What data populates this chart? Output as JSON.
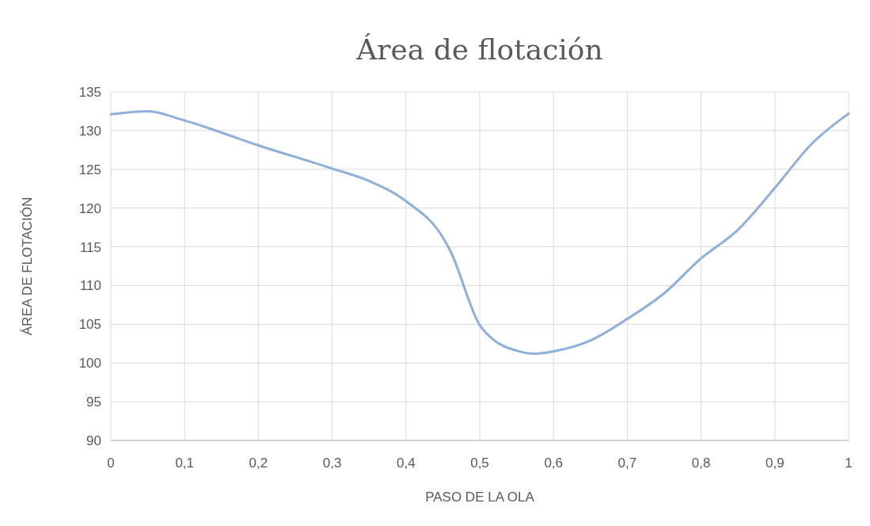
{
  "chart_data": {
    "type": "line",
    "title": "Área de flotación",
    "xlabel": "PASO DE LA OLA",
    "ylabel": "ÁREA DE FLOTACIÓN",
    "x": [
      0,
      0.05,
      0.1,
      0.2,
      0.3,
      0.35,
      0.4,
      0.45,
      0.46,
      0.5,
      0.52,
      0.55,
      0.575,
      0.6,
      0.65,
      0.7,
      0.75,
      0.8,
      0.85,
      0.9,
      0.95,
      1
    ],
    "series": [
      {
        "color": "#8eaedb",
        "values": [
          132.1,
          132.5,
          131.3,
          128.1,
          125.1,
          123.5,
          120.9,
          116.2,
          114.5,
          104.9,
          102.9,
          101.6,
          101.2,
          101.5,
          102.9,
          105.7,
          109,
          113.5,
          117.2,
          122.6,
          128.3,
          132.2
        ]
      }
    ],
    "xlim": [
      0,
      1
    ],
    "xticks": [
      0,
      {
        "value": 0.1,
        "label": "0,1"
      },
      {
        "value": 0.2,
        "label": "0,2"
      },
      {
        "value": 0.3,
        "label": "0,3"
      },
      {
        "value": 0.4,
        "label": "0,4"
      },
      {
        "value": 0.5,
        "label": "0,5"
      },
      {
        "value": 0.6,
        "label": "0,6"
      },
      {
        "value": 0.7,
        "label": "0,7"
      },
      {
        "value": 0.8,
        "label": "0,8"
      },
      {
        "value": 0.9,
        "label": "0,9"
      },
      1
    ],
    "ylim": [
      90,
      135
    ],
    "yticks": [
      90,
      95,
      100,
      105,
      110,
      115,
      120,
      125,
      130,
      135
    ],
    "grid": true,
    "marker": "none",
    "line_style": "solid"
  }
}
